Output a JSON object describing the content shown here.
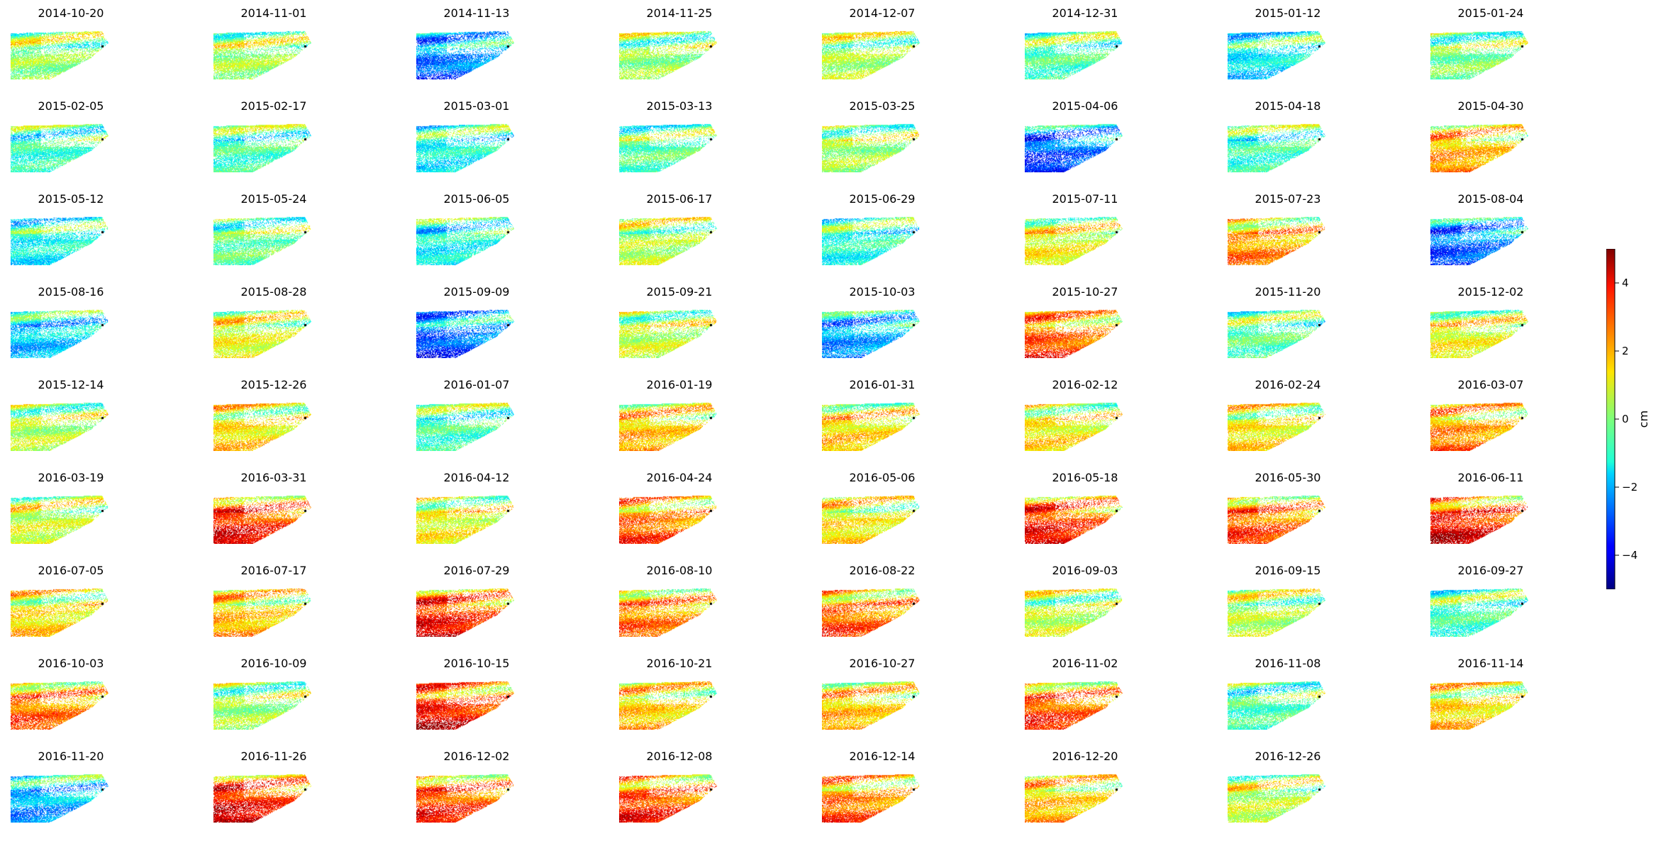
{
  "chart_data": {
    "type": "heatmap",
    "layout": {
      "rows": 9,
      "cols": 8
    },
    "titles": [
      "2014-10-20",
      "2014-11-01",
      "2014-11-13",
      "2014-11-25",
      "2014-12-07",
      "2014-12-31",
      "2015-01-12",
      "2015-01-24",
      "2015-02-05",
      "2015-02-17",
      "2015-03-01",
      "2015-03-13",
      "2015-03-25",
      "2015-04-06",
      "2015-04-18",
      "2015-04-30",
      "2015-05-12",
      "2015-05-24",
      "2015-06-05",
      "2015-06-17",
      "2015-06-29",
      "2015-07-11",
      "2015-07-23",
      "2015-08-04",
      "2015-08-16",
      "2015-08-28",
      "2015-09-09",
      "2015-09-21",
      "2015-10-03",
      "2015-10-27",
      "2015-11-20",
      "2015-12-02",
      "2015-12-14",
      "2015-12-26",
      "2016-01-07",
      "2016-01-19",
      "2016-01-31",
      "2016-02-12",
      "2016-02-24",
      "2016-03-07",
      "2016-03-19",
      "2016-03-31",
      "2016-04-12",
      "2016-04-24",
      "2016-05-06",
      "2016-05-18",
      "2016-05-30",
      "2016-06-11",
      "2016-07-05",
      "2016-07-17",
      "2016-07-29",
      "2016-08-10",
      "2016-08-22",
      "2016-09-03",
      "2016-09-15",
      "2016-09-27",
      "2016-10-03",
      "2016-10-09",
      "2016-10-15",
      "2016-10-21",
      "2016-10-27",
      "2016-11-02",
      "2016-11-08",
      "2016-11-14",
      "2016-11-20",
      "2016-11-26",
      "2016-12-02",
      "2016-12-08",
      "2016-12-14",
      "2016-12-20",
      "2016-12-26"
    ],
    "panel_mean_cm": [
      0.2,
      0.3,
      -2.2,
      0.2,
      0.4,
      -0.4,
      -1.2,
      0.0,
      -0.6,
      -0.5,
      -1.0,
      -0.3,
      0.3,
      -2.6,
      -0.6,
      1.8,
      -1.0,
      -0.2,
      -1.0,
      0.5,
      -0.8,
      1.0,
      2.0,
      -2.4,
      -1.5,
      0.9,
      -2.5,
      0.6,
      -1.9,
      2.5,
      -0.3,
      1.0,
      0.5,
      1.3,
      -0.5,
      1.6,
      1.4,
      1.2,
      1.2,
      2.0,
      0.7,
      3.1,
      1.0,
      2.4,
      1.2,
      3.0,
      2.5,
      3.3,
      1.3,
      1.6,
      3.1,
      2.2,
      2.4,
      0.6,
      0.5,
      -0.5,
      2.3,
      0.3,
      3.2,
      1.5,
      1.6,
      2.6,
      -0.4,
      1.4,
      -1.8,
      3.3,
      2.8,
      2.8,
      2.3,
      1.6,
      0.6
    ],
    "colorbar": {
      "label": "cm",
      "range": [
        -5,
        5
      ],
      "ticks": [
        -4,
        -2,
        0,
        2,
        4
      ],
      "tick_labels": [
        "−4",
        "−2",
        "0",
        "2",
        "4"
      ],
      "colormap": "jet"
    }
  }
}
